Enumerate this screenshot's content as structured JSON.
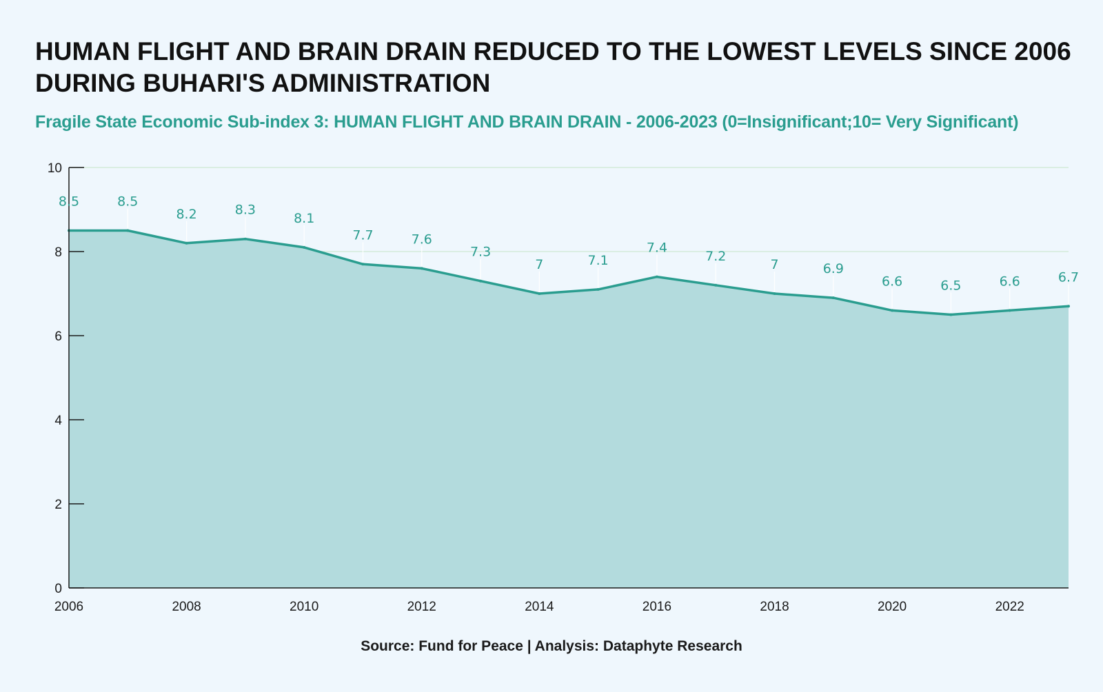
{
  "header": {
    "title": "HUMAN FLIGHT AND BRAIN DRAIN REDUCED TO THE LOWEST LEVELS SINCE 2006 DURING BUHARI'S ADMINISTRATION",
    "subtitle": "Fragile State Economic Sub-index 3: HUMAN FLIGHT AND BRAIN DRAIN - 2006-2023 (0=Insignificant;10= Very Significant)"
  },
  "footer": {
    "source": "Source: Fund for Peace | Analysis: Dataphyte Research"
  },
  "colors": {
    "background": "#eff7fd",
    "line": "#2a9d8f",
    "area_fill": "#b3dbdd",
    "gridline": "#d3ebd9",
    "label": "#2a9d8f"
  },
  "chart_data": {
    "type": "area",
    "x": [
      2006,
      2007,
      2008,
      2009,
      2010,
      2011,
      2012,
      2013,
      2014,
      2015,
      2016,
      2017,
      2018,
      2019,
      2020,
      2021,
      2022,
      2023
    ],
    "values": [
      8.5,
      8.5,
      8.2,
      8.3,
      8.1,
      7.7,
      7.6,
      7.3,
      7,
      7.1,
      7.4,
      7.2,
      7,
      6.9,
      6.6,
      6.5,
      6.6,
      6.7
    ],
    "data_labels": [
      "8.5",
      "8.5",
      "8.2",
      "8.3",
      "8.1",
      "7.7",
      "7.6",
      "7.3",
      "7",
      "7.1",
      "7.4",
      "7.2",
      "7",
      "6.9",
      "6.6",
      "6.5",
      "6.6",
      "6.7"
    ],
    "xlim": [
      2006,
      2023
    ],
    "ylim": [
      0,
      10
    ],
    "x_ticks": [
      2006,
      2008,
      2010,
      2012,
      2014,
      2016,
      2018,
      2020,
      2022
    ],
    "y_ticks": [
      0,
      2,
      4,
      6,
      8,
      10
    ],
    "grid": true,
    "legend": "none",
    "xlabel": "",
    "ylabel": ""
  }
}
